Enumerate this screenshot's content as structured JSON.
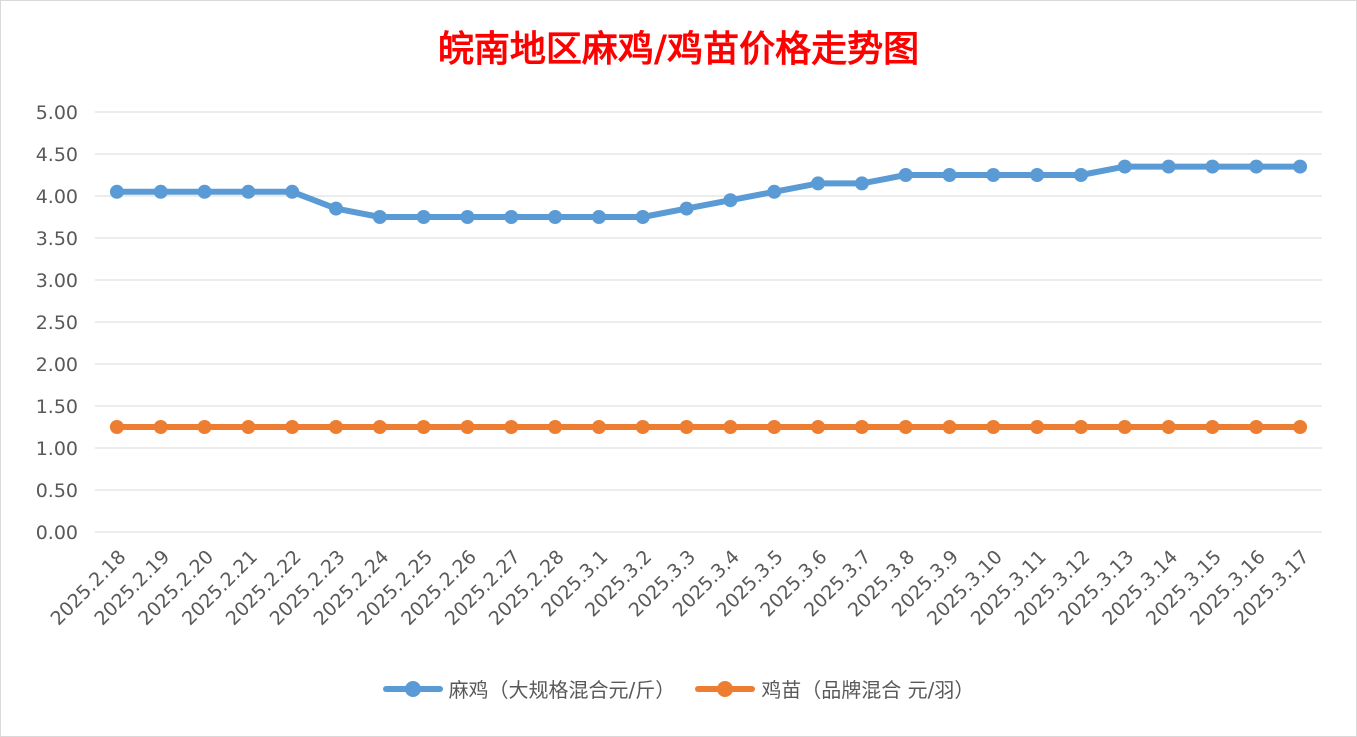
{
  "chart_data": {
    "type": "line",
    "title": "皖南地区麻鸡/鸡苗价格走势图",
    "xlabel": "",
    "ylabel": "",
    "ylim": [
      0,
      5
    ],
    "ytick_step": 0.5,
    "y_tick_labels": [
      "0.00",
      "0.50",
      "1.00",
      "1.50",
      "2.00",
      "2.50",
      "3.00",
      "3.50",
      "4.00",
      "4.50",
      "5.00"
    ],
    "grid": true,
    "legend_position": "bottom",
    "categories": [
      "2025.2.18",
      "2025.2.19",
      "2025.2.20",
      "2025.2.21",
      "2025.2.22",
      "2025.2.23",
      "2025.2.24",
      "2025.2.25",
      "2025.2.26",
      "2025.2.27",
      "2025.2.28",
      "2025.3.1",
      "2025.3.2",
      "2025.3.3",
      "2025.3.4",
      "2025.3.5",
      "2025.3.6",
      "2025.3.7",
      "2025.3.8",
      "2025.3.9",
      "2025.3.10",
      "2025.3.11",
      "2025.3.12",
      "2025.3.13",
      "2025.3.14",
      "2025.3.15",
      "2025.3.16",
      "2025.3.17"
    ],
    "series": [
      {
        "name": "麻鸡（大规格混合元/斤）",
        "color": "#5b9bd5",
        "values": [
          4.05,
          4.05,
          4.05,
          4.05,
          4.05,
          3.85,
          3.75,
          3.75,
          3.75,
          3.75,
          3.75,
          3.75,
          3.75,
          3.85,
          3.95,
          4.05,
          4.15,
          4.15,
          4.25,
          4.25,
          4.25,
          4.25,
          4.25,
          4.35,
          4.35,
          4.35,
          4.35,
          4.35
        ]
      },
      {
        "name": "鸡苗（品牌混合 元/羽）",
        "color": "#ed7d31",
        "values": [
          1.25,
          1.25,
          1.25,
          1.25,
          1.25,
          1.25,
          1.25,
          1.25,
          1.25,
          1.25,
          1.25,
          1.25,
          1.25,
          1.25,
          1.25,
          1.25,
          1.25,
          1.25,
          1.25,
          1.25,
          1.25,
          1.25,
          1.25,
          1.25,
          1.25,
          1.25,
          1.25,
          1.25
        ]
      }
    ],
    "colors": {
      "title": "#ff0000",
      "gridline": "#d9d9d9",
      "tick_text": "#595959"
    }
  }
}
